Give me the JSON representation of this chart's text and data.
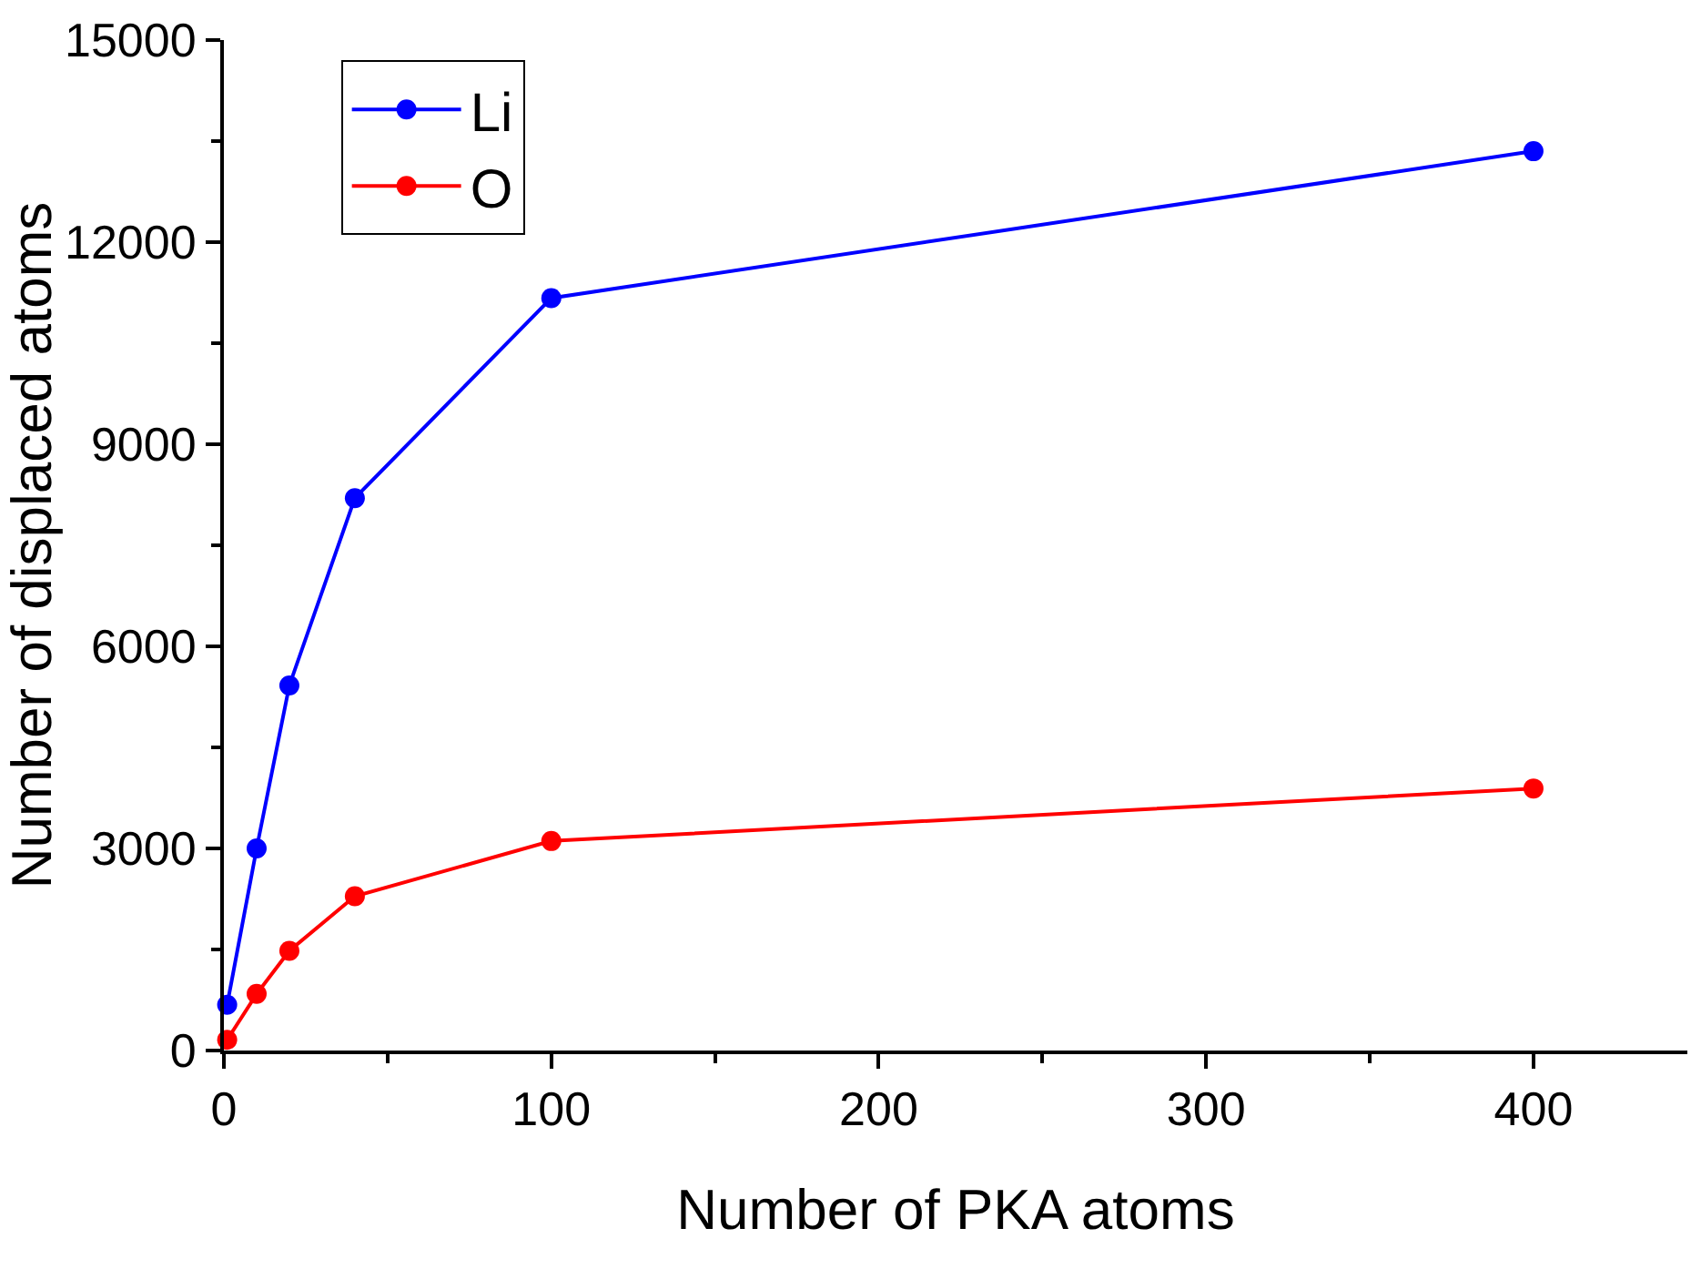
{
  "chart_data": {
    "type": "line",
    "xlabel": "Number of PKA atoms",
    "ylabel": "Number of displaced atoms",
    "xlim": [
      0,
      447
    ],
    "xticks": [
      0,
      100,
      200,
      300,
      400
    ],
    "ylim": [
      0,
      15000
    ],
    "yticks": [
      0,
      3000,
      6000,
      9000,
      12000,
      15000
    ],
    "x": [
      1,
      10,
      20,
      40,
      100,
      400
    ],
    "series": [
      {
        "name": "Li",
        "color": "#0000ff",
        "values": [
          680,
          3000,
          5420,
          8200,
          11170,
          13350
        ]
      },
      {
        "name": "O",
        "color": "#ff0000",
        "values": [
          160,
          840,
          1480,
          2290,
          3110,
          3890
        ]
      }
    ],
    "marker": "circle",
    "line_style": "solid",
    "grid": false,
    "legend": "top left"
  }
}
